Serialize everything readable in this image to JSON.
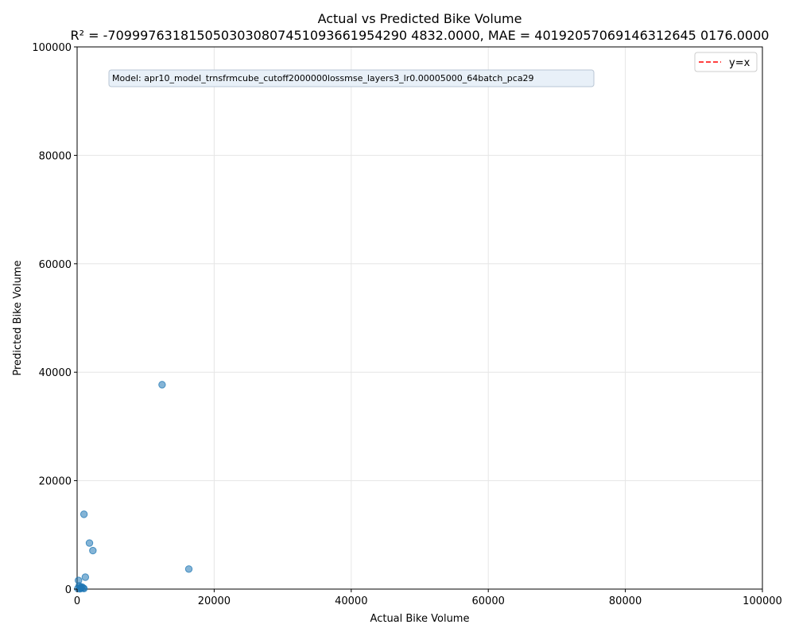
{
  "chart_data": {
    "type": "scatter",
    "title": "Actual vs Predicted Bike Volume",
    "subtitle": "R² = -7099976318150503030807451093661954290 4832.0000, MAE = 40192057069146312645 0176.0000",
    "xlabel": "Actual Bike Volume",
    "ylabel": "Predicted Bike Volume",
    "xlim": [
      0,
      100000
    ],
    "ylim": [
      0,
      100000
    ],
    "xticks": [
      "0",
      "20000",
      "40000",
      "60000",
      "80000",
      "100000"
    ],
    "yticks": [
      "0",
      "20000",
      "40000",
      "60000",
      "80000",
      "100000"
    ],
    "grid": true,
    "legend_position": "top-right",
    "legend": [
      {
        "label": "y=x",
        "style": "dashed",
        "color": "#ff0000"
      }
    ],
    "annotation": "Model: apr10_model_trnsfrmcube_cutoff2000000lossmse_layers3_lr0.00005000_64batch_pca29",
    "point_color": "#1f77b4",
    "reference_line": {
      "label": "y=x",
      "color": "#ff0000"
    },
    "points": [
      {
        "x": 12400,
        "y": 37700
      },
      {
        "x": 1000,
        "y": 13800
      },
      {
        "x": 1800,
        "y": 8500
      },
      {
        "x": 2300,
        "y": 7100
      },
      {
        "x": 16300,
        "y": 3700
      },
      {
        "x": 1200,
        "y": 2200
      },
      {
        "x": 200,
        "y": 1600
      },
      {
        "x": 300,
        "y": 600
      },
      {
        "x": 500,
        "y": 300
      },
      {
        "x": 700,
        "y": 400
      },
      {
        "x": 900,
        "y": 200
      },
      {
        "x": 1000,
        "y": 100
      },
      {
        "x": 100,
        "y": 100
      },
      {
        "x": 400,
        "y": 50
      },
      {
        "x": 600,
        "y": 150
      }
    ]
  }
}
